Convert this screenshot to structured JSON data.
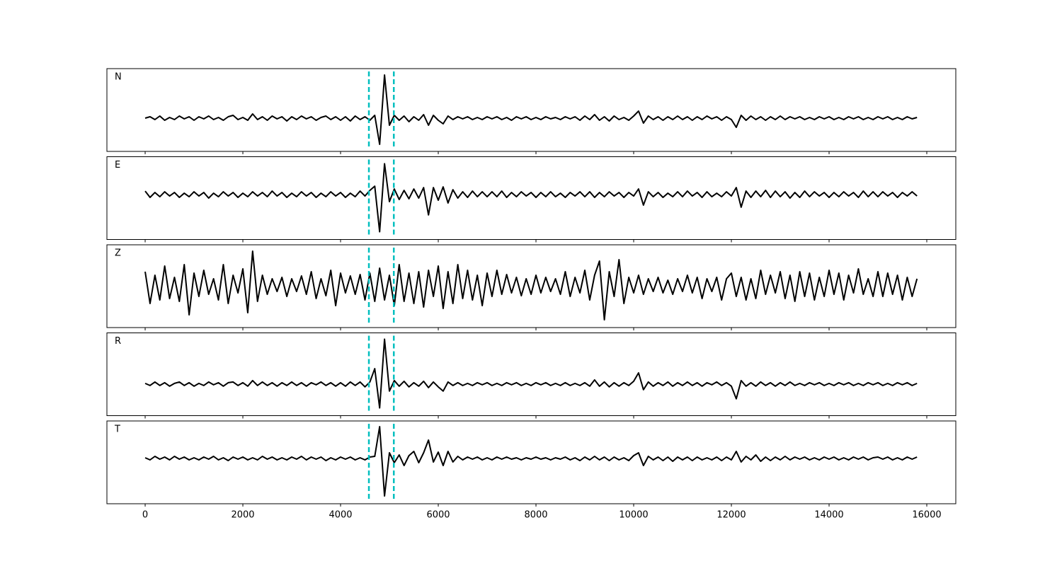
{
  "chart_data": {
    "type": "line",
    "x": [
      0,
      100,
      200,
      300,
      400,
      500,
      600,
      700,
      800,
      900,
      1000,
      1100,
      1200,
      1300,
      1400,
      1500,
      1600,
      1700,
      1800,
      1900,
      2000,
      2100,
      2200,
      2300,
      2400,
      2500,
      2600,
      2700,
      2800,
      2900,
      3000,
      3100,
      3200,
      3300,
      3400,
      3500,
      3600,
      3700,
      3800,
      3900,
      4000,
      4100,
      4200,
      4300,
      4400,
      4500,
      4600,
      4700,
      4800,
      4900,
      5000,
      5100,
      5200,
      5300,
      5400,
      5500,
      5600,
      5700,
      5800,
      5900,
      6000,
      6100,
      6200,
      6300,
      6400,
      6500,
      6600,
      6700,
      6800,
      6900,
      7000,
      7100,
      7200,
      7300,
      7400,
      7500,
      7600,
      7700,
      7800,
      7900,
      8000,
      8100,
      8200,
      8300,
      8400,
      8500,
      8600,
      8700,
      8800,
      8900,
      9000,
      9100,
      9200,
      9300,
      9400,
      9500,
      9600,
      9700,
      9800,
      9900,
      10000,
      10100,
      10200,
      10300,
      10400,
      10500,
      10600,
      10700,
      10800,
      10900,
      11000,
      11100,
      11200,
      11300,
      11400,
      11500,
      11600,
      11700,
      11800,
      11900,
      12000,
      12100,
      12200,
      12300,
      12400,
      12500,
      12600,
      12700,
      12800,
      12900,
      13000,
      13100,
      13200,
      13300,
      13400,
      13500,
      13600,
      13700,
      13800,
      13900,
      14000,
      14100,
      14200,
      14300,
      14400,
      14500,
      14600,
      14700,
      14800,
      14900,
      15000,
      15100,
      15200,
      15300,
      15400,
      15500,
      15600,
      15700,
      15800
    ],
    "xlim": [
      -783,
      16594
    ],
    "xticks": [
      0,
      2000,
      4000,
      6000,
      8000,
      10000,
      12000,
      14000,
      16000
    ],
    "vlines": [
      4580,
      5090
    ],
    "vline_color": "#00bfbf",
    "vline_style": "dashed",
    "series": [
      {
        "name": "N",
        "color": "#000000",
        "ylim": [
          -0.47,
          0.7
        ],
        "values": [
          0,
          0.02,
          -0.02,
          0.03,
          -0.03,
          0.01,
          -0.02,
          0.03,
          -0.01,
          0.02,
          -0.03,
          0.02,
          -0.01,
          0.03,
          -0.02,
          0.01,
          -0.03,
          0.02,
          0.04,
          -0.02,
          0.01,
          -0.03,
          0.06,
          -0.02,
          0.02,
          -0.03,
          0.03,
          -0.01,
          0.02,
          -0.04,
          0.02,
          -0.02,
          0.03,
          -0.01,
          0.02,
          -0.03,
          0.01,
          0.03,
          -0.02,
          0.02,
          -0.03,
          0.02,
          -0.04,
          0.03,
          -0.02,
          0.02,
          -0.03,
          0.04,
          -0.37,
          0.61,
          -0.1,
          0.04,
          -0.03,
          0.03,
          -0.05,
          0.02,
          -0.03,
          0.05,
          -0.1,
          0.04,
          -0.03,
          -0.08,
          0.03,
          -0.02,
          0.02,
          -0.01,
          0.02,
          -0.02,
          0.01,
          -0.02,
          0.02,
          -0.01,
          0.02,
          -0.02,
          0.01,
          -0.03,
          0.02,
          -0.01,
          0.02,
          -0.02,
          0.01,
          -0.02,
          0.02,
          -0.01,
          0.01,
          -0.02,
          0.02,
          -0.01,
          0.02,
          -0.03,
          0.03,
          -0.02,
          0.05,
          -0.03,
          0.02,
          -0.04,
          0.03,
          -0.02,
          0.01,
          -0.03,
          0.03,
          0.1,
          -0.07,
          0.03,
          -0.02,
          0.02,
          -0.03,
          0.02,
          -0.02,
          0.03,
          -0.02,
          0.02,
          -0.03,
          0.02,
          -0.02,
          0.03,
          -0.01,
          0.02,
          -0.03,
          0.02,
          -0.02,
          -0.13,
          0.04,
          -0.03,
          0.03,
          -0.02,
          0.02,
          -0.03,
          0.02,
          -0.02,
          0.03,
          -0.02,
          0.02,
          -0.01,
          0.02,
          -0.02,
          0.01,
          -0.02,
          0.02,
          -0.01,
          0.02,
          -0.02,
          0.01,
          -0.02,
          0.02,
          -0.01,
          0.02,
          -0.02,
          0.01,
          -0.02,
          0.02,
          -0.01,
          0.02,
          -0.02,
          0.01,
          -0.02,
          0.02,
          -0.01,
          0.01
        ]
      },
      {
        "name": "E",
        "color": "#000000",
        "ylim": [
          -0.64,
          0.54
        ],
        "values": [
          0.05,
          -0.04,
          0.03,
          -0.03,
          0.04,
          -0.02,
          0.03,
          -0.04,
          0.02,
          -0.03,
          0.04,
          -0.02,
          0.03,
          -0.05,
          0.02,
          -0.03,
          0.04,
          -0.02,
          0.03,
          -0.04,
          0.02,
          -0.03,
          0.04,
          -0.02,
          0.03,
          -0.03,
          0.05,
          -0.02,
          0.03,
          -0.04,
          0.02,
          -0.03,
          0.04,
          -0.02,
          0.03,
          -0.04,
          0.02,
          -0.03,
          0.04,
          -0.02,
          0.03,
          -0.04,
          0.02,
          -0.03,
          0.05,
          -0.02,
          0.06,
          0.12,
          -0.53,
          0.44,
          -0.1,
          0.08,
          -0.07,
          0.06,
          -0.06,
          0.08,
          -0.05,
          0.1,
          -0.29,
          0.1,
          -0.08,
          0.11,
          -0.12,
          0.07,
          -0.05,
          0.04,
          -0.04,
          0.05,
          -0.03,
          0.04,
          -0.03,
          0.04,
          -0.03,
          0.05,
          -0.04,
          0.03,
          -0.03,
          0.04,
          -0.02,
          0.03,
          -0.04,
          0.03,
          -0.03,
          0.04,
          -0.03,
          0.02,
          -0.04,
          0.03,
          -0.02,
          0.04,
          -0.03,
          0.04,
          -0.04,
          0.03,
          -0.03,
          0.04,
          -0.02,
          0.03,
          -0.04,
          0.03,
          -0.02,
          0.08,
          -0.15,
          0.04,
          -0.03,
          0.03,
          -0.04,
          0.02,
          -0.03,
          0.04,
          -0.03,
          0.05,
          -0.02,
          0.03,
          -0.04,
          0.04,
          -0.03,
          0.02,
          -0.03,
          0.04,
          -0.02,
          0.1,
          -0.18,
          0.05,
          -0.04,
          0.05,
          -0.03,
          0.06,
          -0.04,
          0.05,
          -0.03,
          0.04,
          -0.05,
          0.03,
          -0.04,
          0.05,
          -0.03,
          0.04,
          -0.02,
          0.03,
          -0.04,
          0.03,
          -0.03,
          0.04,
          -0.02,
          0.03,
          -0.04,
          0.05,
          -0.03,
          0.04,
          -0.03,
          0.04,
          -0.02,
          0.03,
          -0.04,
          0.03,
          -0.02,
          0.04,
          -0.02
        ]
      },
      {
        "name": "Z",
        "color": "#000000",
        "ylim": [
          -0.59,
          0.58
        ],
        "values": [
          0.2,
          -0.25,
          0.15,
          -0.2,
          0.28,
          -0.18,
          0.12,
          -0.22,
          0.3,
          -0.41,
          0.18,
          -0.15,
          0.22,
          -0.12,
          0.1,
          -0.2,
          0.3,
          -0.25,
          0.15,
          -0.1,
          0.24,
          -0.38,
          0.49,
          -0.22,
          0.15,
          -0.12,
          0.1,
          -0.08,
          0.12,
          -0.15,
          0.1,
          -0.08,
          0.14,
          -0.12,
          0.2,
          -0.18,
          0.1,
          -0.14,
          0.22,
          -0.28,
          0.18,
          -0.1,
          0.14,
          -0.12,
          0.16,
          -0.2,
          0.18,
          -0.22,
          0.25,
          -0.2,
          0.15,
          -0.28,
          0.3,
          -0.22,
          0.18,
          -0.25,
          0.2,
          -0.3,
          0.22,
          -0.15,
          0.28,
          -0.32,
          0.2,
          -0.25,
          0.3,
          -0.18,
          0.22,
          -0.2,
          0.15,
          -0.28,
          0.18,
          -0.15,
          0.22,
          -0.12,
          0.16,
          -0.1,
          0.12,
          -0.14,
          0.1,
          -0.12,
          0.15,
          -0.1,
          0.12,
          -0.08,
          0.1,
          -0.12,
          0.2,
          -0.15,
          0.12,
          -0.1,
          0.22,
          -0.2,
          0.15,
          0.35,
          -0.48,
          0.2,
          -0.15,
          0.37,
          -0.25,
          0.12,
          -0.1,
          0.15,
          -0.12,
          0.1,
          -0.08,
          0.12,
          -0.1,
          0.08,
          -0.12,
          0.1,
          -0.08,
          0.15,
          -0.1,
          0.12,
          -0.18,
          0.1,
          -0.08,
          0.12,
          -0.2,
          0.1,
          0.18,
          -0.15,
          0.12,
          -0.2,
          0.1,
          -0.18,
          0.22,
          -0.12,
          0.15,
          -0.1,
          0.2,
          -0.18,
          0.15,
          -0.22,
          0.2,
          -0.15,
          0.18,
          -0.2,
          0.12,
          -0.15,
          0.22,
          -0.12,
          0.18,
          -0.2,
          0.15,
          -0.1,
          0.24,
          -0.12,
          0.1,
          -0.15,
          0.2,
          -0.15,
          0.18,
          -0.12,
          0.15,
          -0.2,
          0.12,
          -0.15,
          0.1
        ]
      },
      {
        "name": "R",
        "color": "#000000",
        "ylim": [
          -0.45,
          0.73
        ],
        "values": [
          0.01,
          -0.02,
          0.03,
          -0.02,
          0.02,
          -0.03,
          0.01,
          0.03,
          -0.02,
          0.02,
          -0.03,
          0.01,
          -0.02,
          0.03,
          -0.01,
          0.02,
          -0.03,
          0.02,
          0.03,
          -0.02,
          0.02,
          -0.03,
          0.05,
          -0.02,
          0.03,
          -0.02,
          0.02,
          -0.03,
          0.02,
          -0.02,
          0.03,
          -0.02,
          0.02,
          -0.03,
          0.02,
          -0.01,
          0.03,
          -0.02,
          0.02,
          -0.03,
          0.02,
          -0.03,
          0.03,
          -0.02,
          0.03,
          -0.04,
          0.03,
          0.22,
          -0.34,
          0.64,
          -0.1,
          0.05,
          -0.03,
          0.04,
          -0.04,
          0.02,
          -0.03,
          0.04,
          -0.05,
          0.03,
          -0.04,
          -0.1,
          0.03,
          -0.02,
          0.02,
          -0.02,
          0.01,
          -0.02,
          0.02,
          -0.01,
          0.02,
          -0.02,
          0.01,
          -0.02,
          0.02,
          -0.01,
          0.02,
          -0.02,
          0.01,
          -0.02,
          0.02,
          -0.01,
          0.02,
          -0.02,
          0.01,
          -0.02,
          0.02,
          -0.02,
          0.01,
          -0.02,
          0.02,
          -0.03,
          0.06,
          -0.03,
          0.03,
          -0.04,
          0.02,
          -0.03,
          0.02,
          -0.02,
          0.04,
          0.16,
          -0.08,
          0.03,
          -0.03,
          0.02,
          -0.02,
          0.03,
          -0.03,
          0.02,
          -0.02,
          0.03,
          -0.02,
          0.02,
          -0.03,
          0.02,
          -0.01,
          0.03,
          -0.02,
          0.02,
          -0.03,
          -0.21,
          0.05,
          -0.03,
          0.02,
          -0.03,
          0.03,
          -0.02,
          0.02,
          -0.03,
          0.02,
          -0.02,
          0.03,
          -0.02,
          0.01,
          -0.02,
          0.02,
          -0.01,
          0.02,
          -0.02,
          0.01,
          -0.02,
          0.02,
          -0.01,
          0.02,
          -0.02,
          0.01,
          -0.02,
          0.02,
          -0.01,
          0.02,
          -0.02,
          0.01,
          -0.02,
          0.02,
          -0.01,
          0.02,
          -0.02,
          0.01
        ]
      },
      {
        "name": "T",
        "color": "#000000",
        "ylim": [
          -0.64,
          0.53
        ],
        "values": [
          0.01,
          -0.02,
          0.03,
          -0.01,
          0.02,
          -0.02,
          0.03,
          -0.01,
          0.02,
          -0.02,
          0.01,
          -0.02,
          0.02,
          -0.01,
          0.03,
          -0.02,
          0.01,
          -0.03,
          0.02,
          -0.01,
          0.02,
          -0.02,
          0.01,
          -0.02,
          0.03,
          -0.01,
          0.02,
          -0.02,
          0.01,
          -0.02,
          0.02,
          -0.01,
          0.03,
          -0.02,
          0.02,
          -0.01,
          0.02,
          -0.03,
          0.01,
          -0.02,
          0.02,
          -0.01,
          0.02,
          -0.02,
          0.01,
          -0.02,
          0.02,
          0.03,
          0.45,
          -0.53,
          0.08,
          -0.06,
          0.05,
          -0.1,
          0.04,
          0.1,
          -0.06,
          0.08,
          0.26,
          -0.05,
          0.09,
          -0.1,
          0.1,
          -0.05,
          0.03,
          -0.02,
          0.02,
          -0.01,
          0.02,
          -0.02,
          0.01,
          -0.02,
          0.02,
          -0.01,
          0.02,
          -0.01,
          0.01,
          -0.02,
          0.01,
          -0.01,
          0.02,
          -0.01,
          0.01,
          -0.02,
          0.01,
          -0.01,
          0.02,
          -0.02,
          0.01,
          -0.03,
          0.02,
          -0.02,
          0.03,
          -0.02,
          0.02,
          -0.03,
          0.02,
          -0.02,
          0.01,
          -0.03,
          0.04,
          0.08,
          -0.1,
          0.03,
          -0.02,
          0.02,
          -0.03,
          0.02,
          -0.04,
          0.02,
          -0.02,
          0.02,
          -0.03,
          0.02,
          -0.02,
          0.01,
          -0.02,
          0.02,
          -0.03,
          0.02,
          -0.02,
          0.1,
          -0.05,
          0.03,
          -0.02,
          0.05,
          -0.04,
          0.02,
          -0.03,
          0.02,
          -0.02,
          0.03,
          -0.02,
          0.02,
          -0.01,
          0.02,
          -0.02,
          0.01,
          -0.02,
          0.02,
          -0.01,
          0.02,
          -0.02,
          0.01,
          -0.02,
          0.02,
          -0.01,
          0.02,
          -0.02,
          0.01,
          0.02,
          -0.01,
          0.02,
          -0.02,
          0.01,
          -0.02,
          0.02,
          -0.01,
          0.02
        ]
      }
    ]
  }
}
